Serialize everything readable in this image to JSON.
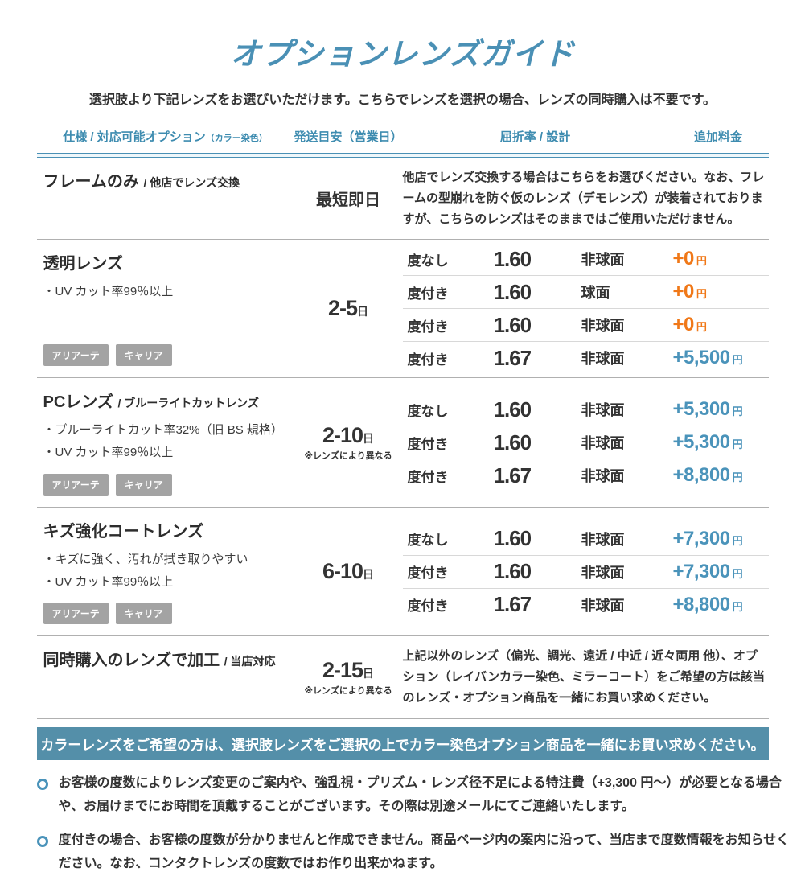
{
  "colors": {
    "accent_teal": "#4a90b5",
    "price_orange": "#f07818",
    "price_blue": "#4a93ba",
    "tag_gray": "#a3a3a3",
    "banner_bg": "#548fa9"
  },
  "currency_suffix": "円",
  "header": {
    "title": "オプションレンズガイド",
    "subtitle": "選択肢より下記レンズをお選びいただけます。こちらでレンズを選択の場合、レンズの同時購入は不要です。",
    "columns": {
      "spec": "仕様 / 対応可能オプション",
      "spec_small": "（カラー染色）",
      "shipping": "発送目安（営業日）",
      "index_design": "屈折率 / 設計",
      "price": "追加料金"
    }
  },
  "rows": [
    {
      "title": "フレームのみ",
      "title_suffix": "/ 他店でレンズ交換",
      "shipping": "最短即日",
      "description": "他店でレンズ交換する場合はこちらをお選びください。なお、フレームの型崩れを防ぐ仮のレンズ（デモレンズ）が装着されておりますが、こちらのレンズはそのままではご使用いただけません。"
    },
    {
      "title": "透明レンズ",
      "features": [
        "・UV カット率99％以上"
      ],
      "tags": [
        "アリアーテ",
        "キャリア"
      ],
      "shipping": "2-5",
      "shipping_unit": "日",
      "options": [
        {
          "power": "度なし",
          "index": "1.60",
          "design": "非球面",
          "price": "+0"
        },
        {
          "power": "度付き",
          "index": "1.60",
          "design": "球面",
          "price": "+0"
        },
        {
          "power": "度付き",
          "index": "1.60",
          "design": "非球面",
          "price": "+0"
        },
        {
          "power": "度付き",
          "index": "1.67",
          "design": "非球面",
          "price": "+5,500"
        }
      ]
    },
    {
      "title": "PCレンズ",
      "title_suffix": "/ ブルーライトカットレンズ",
      "features": [
        "・ブルーライトカット率32%（旧 BS 規格）",
        "・UV カット率99％以上"
      ],
      "tags": [
        "アリアーテ",
        "キャリア"
      ],
      "shipping": "2-10",
      "shipping_unit": "日",
      "shipping_note": "※レンズにより異なる",
      "options": [
        {
          "power": "度なし",
          "index": "1.60",
          "design": "非球面",
          "price": "+5,300"
        },
        {
          "power": "度付き",
          "index": "1.60",
          "design": "非球面",
          "price": "+5,300"
        },
        {
          "power": "度付き",
          "index": "1.67",
          "design": "非球面",
          "price": "+8,800"
        }
      ]
    },
    {
      "title": "キズ強化コートレンズ",
      "features": [
        "・キズに強く、汚れが拭き取りやすい",
        "・UV カット率99％以上"
      ],
      "tags": [
        "アリアーテ",
        "キャリア"
      ],
      "shipping": "6-10",
      "shipping_unit": "日",
      "options": [
        {
          "power": "度なし",
          "index": "1.60",
          "design": "非球面",
          "price": "+7,300"
        },
        {
          "power": "度付き",
          "index": "1.60",
          "design": "非球面",
          "price": "+7,300"
        },
        {
          "power": "度付き",
          "index": "1.67",
          "design": "非球面",
          "price": "+8,800"
        }
      ]
    },
    {
      "title": "同時購入のレンズで加工",
      "title_suffix": "/ 当店対応",
      "shipping": "2-15",
      "shipping_unit": "日",
      "shipping_note": "※レンズにより異なる",
      "description": "上記以外のレンズ（偏光、調光、遠近 / 中近 / 近々両用 他）、オプション（レイバンカラー染色、ミラーコート）をご希望の方は該当のレンズ・オプション商品を一緒にお買い求めください。"
    }
  ],
  "banner": "カラーレンズをご希望の方は、選択肢レンズをご選択の上でカラー染色オプション商品を一緒にお買い求めください。",
  "notes": [
    "お客様の度数によりレンズ変更のご案内や、強乱視・プリズム・レンズ径不足による特注費（+3,300 円～）が必要となる場合や、お届けまでにお時間を頂戴することがございます。その際は別途メールにてご連絡いたします。",
    "度付きの場合、お客様の度数が分かりませんと作成できません。商品ページ内の案内に沿って、当店まで度数情報をお知らせください。なお、コンタクトレンズの度数ではお作り出来かねます。"
  ]
}
